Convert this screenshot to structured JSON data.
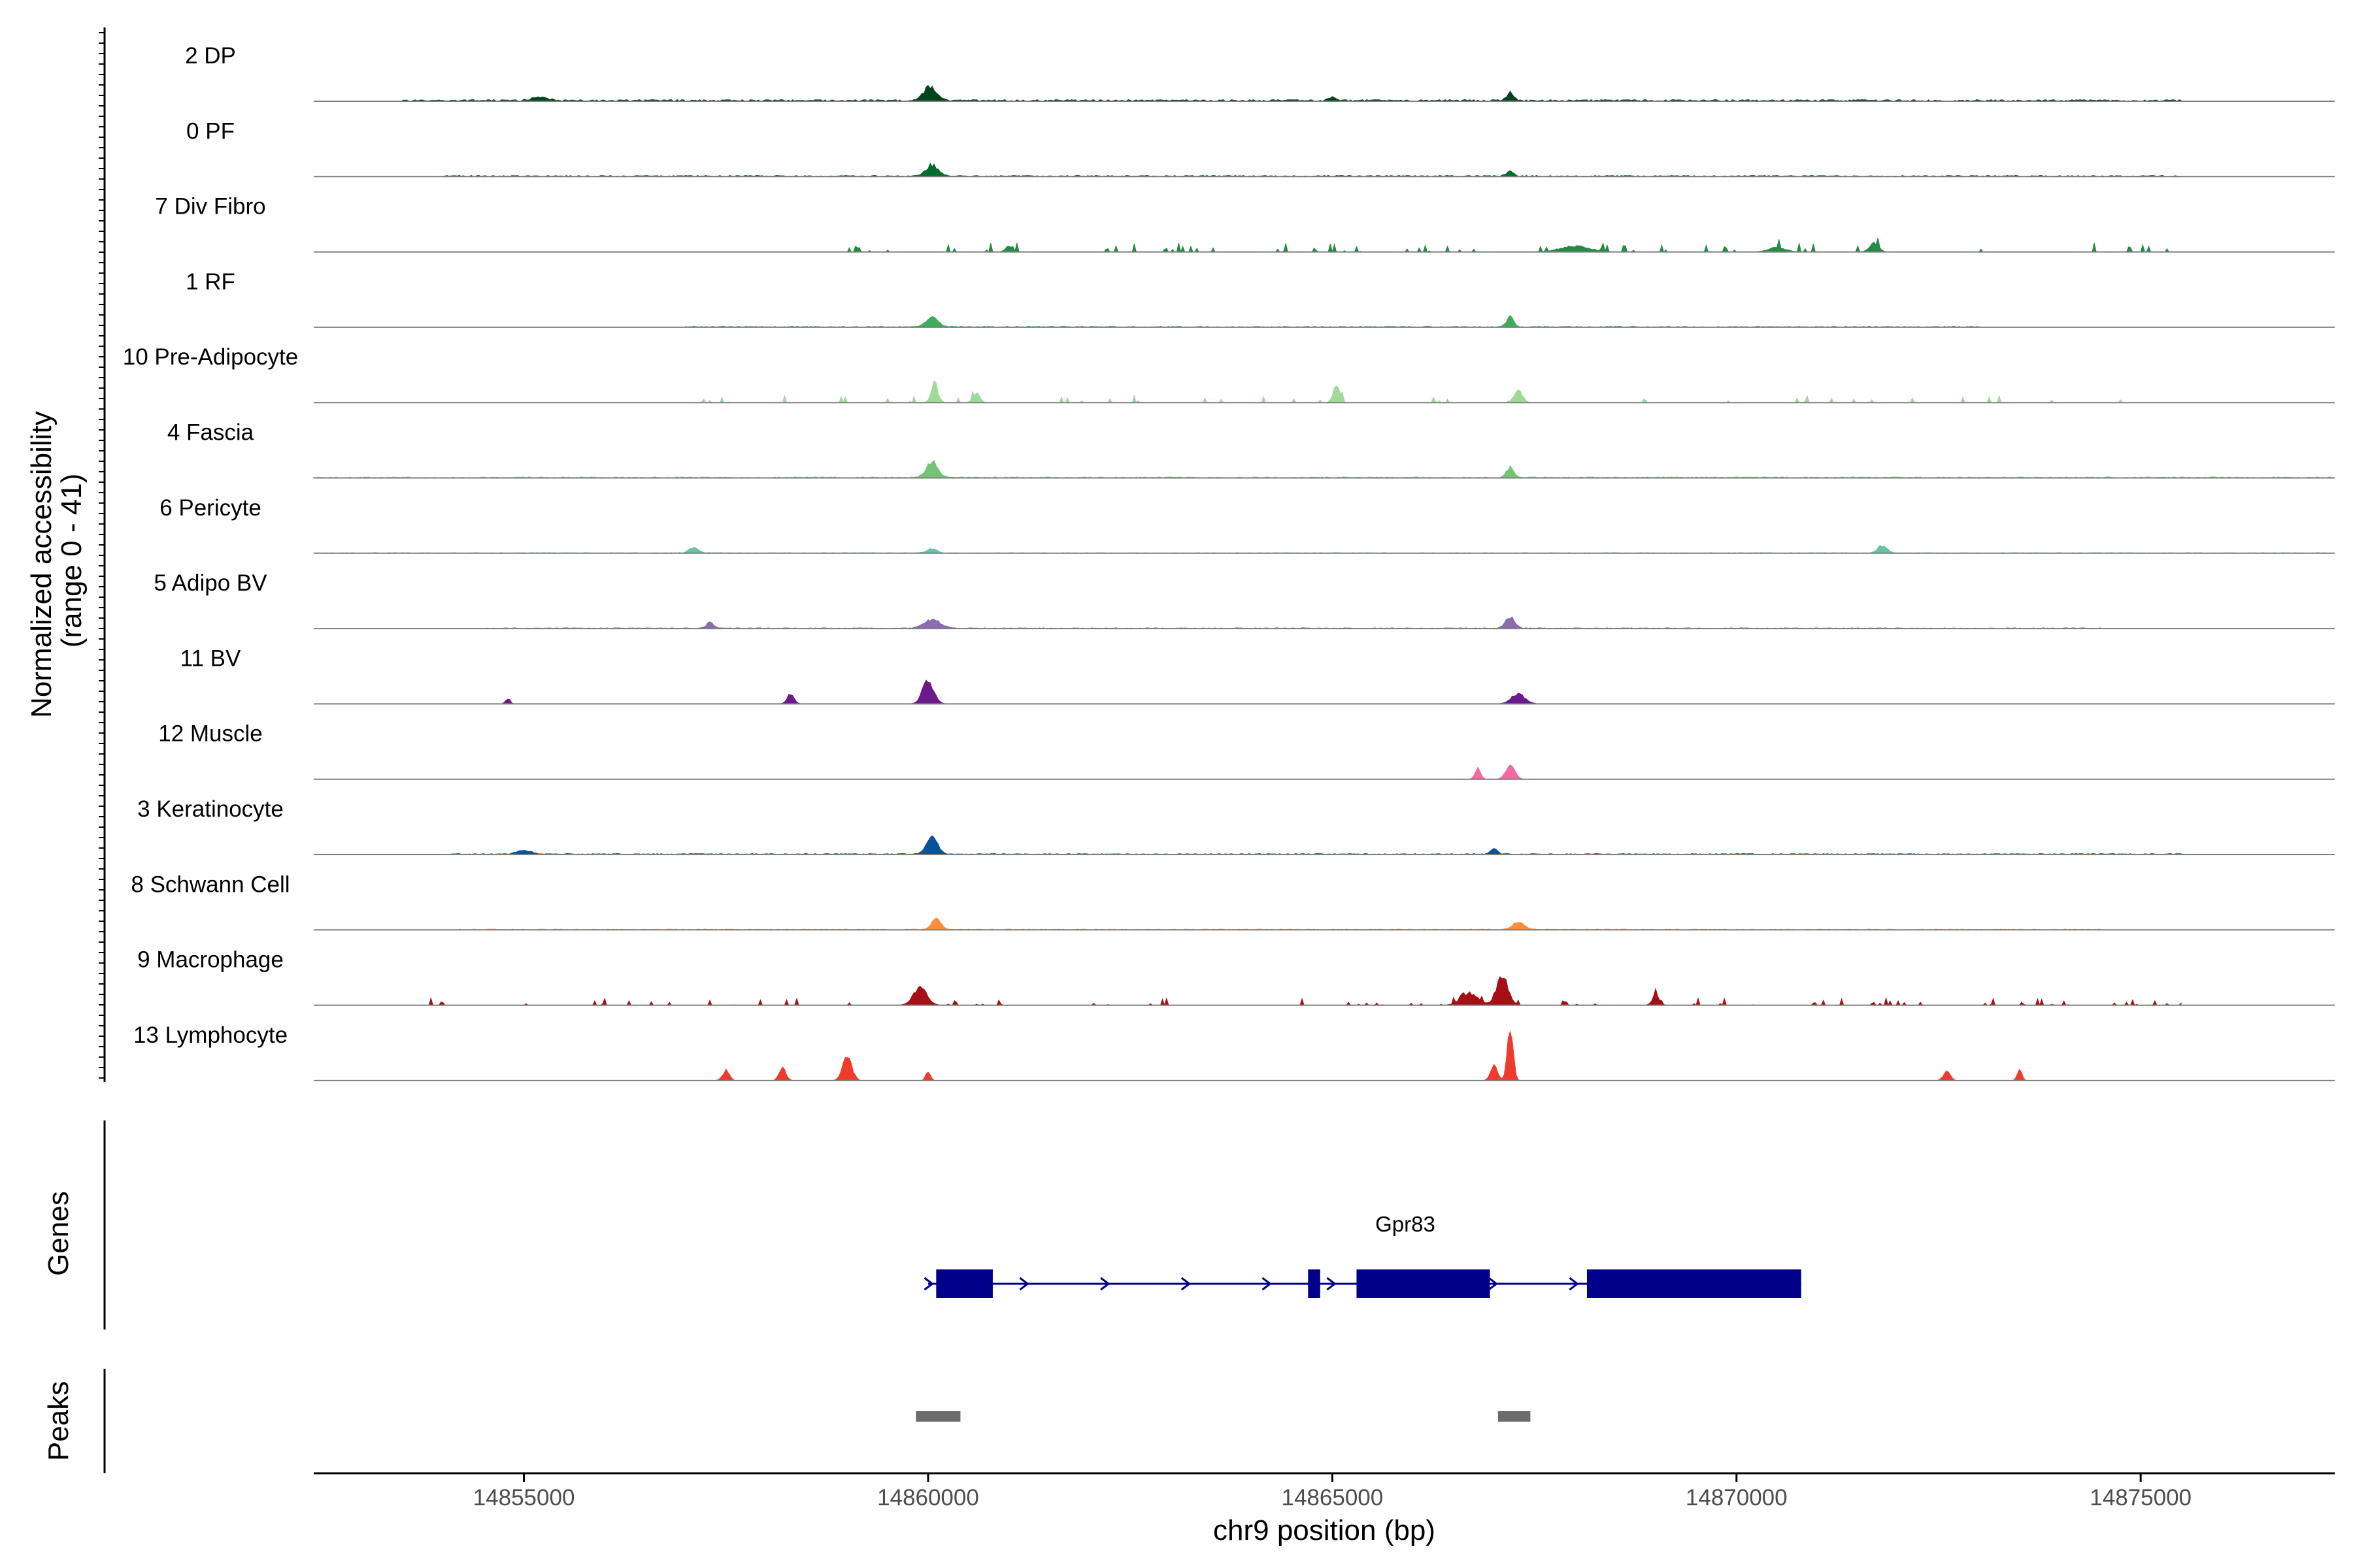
{
  "chart_data": {
    "type": "area",
    "title": "",
    "ylabel_line1": "Normalized accessibility",
    "ylabel_line2": "(range 0 - 41)",
    "y_range": [
      0,
      41
    ],
    "xlabel": "chr9 position (bp)",
    "xlim": [
      14852400,
      14877400
    ],
    "x_ticks": [
      14855000,
      14860000,
      14865000,
      14870000,
      14875000
    ],
    "x_tick_labels": [
      "14855000",
      "14860000",
      "14865000",
      "14870000",
      "14875000"
    ],
    "genes_panel_label": "Genes",
    "peaks_panel_label": "Peaks",
    "tracks": [
      {
        "name": "2 DP",
        "color": "#00441b",
        "noise": 0.4,
        "range": [
          14853500,
          14875500
        ],
        "peaks": [
          [
            14860020,
            120,
            0.45
          ],
          [
            14867200,
            60,
            0.25
          ],
          [
            14855200,
            150,
            0.1
          ],
          [
            14865000,
            60,
            0.1
          ]
        ]
      },
      {
        "name": "0 PF",
        "color": "#006d2c",
        "noise": 0.3,
        "range": [
          14854000,
          14875500
        ],
        "peaks": [
          [
            14860050,
            100,
            0.4
          ],
          [
            14867200,
            60,
            0.2
          ]
        ]
      },
      {
        "name": "7 Div Fibro",
        "color": "#238b45",
        "noise": 0.45,
        "range": [
          14859000,
          14875500
        ],
        "sparse": true,
        "peaks": [
          [
            14861000,
            60,
            0.2
          ],
          [
            14868000,
            250,
            0.2
          ],
          [
            14871700,
            80,
            0.3
          ],
          [
            14870500,
            150,
            0.15
          ]
        ]
      },
      {
        "name": "1 RF",
        "color": "#41ab5d",
        "noise": 0.25,
        "range": [
          14857000,
          14873000
        ],
        "peaks": [
          [
            14860050,
            100,
            0.35
          ],
          [
            14867200,
            60,
            0.35
          ]
        ]
      },
      {
        "name": "10 Pre-Adipocyte",
        "color": "#a1d99b",
        "noise": 0.35,
        "range": [
          14857200,
          14875000
        ],
        "sparse": true,
        "peaks": [
          [
            14860080,
            60,
            0.65
          ],
          [
            14865050,
            60,
            0.55
          ],
          [
            14867300,
            70,
            0.45
          ],
          [
            14860600,
            60,
            0.3
          ]
        ]
      },
      {
        "name": "4 Fascia",
        "color": "#74c476",
        "noise": 0.25,
        "range": [
          14852400,
          14877400
        ],
        "peaks": [
          [
            14860050,
            100,
            0.55
          ],
          [
            14867200,
            60,
            0.35
          ]
        ]
      },
      {
        "name": "6 Pericyte",
        "color": "#66c2a4",
        "noise": 0.15,
        "range": [
          14852400,
          14877400
        ],
        "peaks": [
          [
            14857100,
            80,
            0.2
          ],
          [
            14871800,
            80,
            0.25
          ],
          [
            14860050,
            80,
            0.15
          ]
        ]
      },
      {
        "name": "5 Adipo BV",
        "color": "#8c6bb1",
        "noise": 0.2,
        "range": [
          14854500,
          14874500
        ],
        "peaks": [
          [
            14860050,
            140,
            0.3
          ],
          [
            14867200,
            80,
            0.4
          ],
          [
            14857300,
            60,
            0.2
          ]
        ]
      },
      {
        "name": "11 BV",
        "color": "#6a1a8a",
        "noise": 0.0,
        "range": [
          14854700,
          14868800
        ],
        "sparse": true,
        "peaks": [
          [
            14860000,
            100,
            0.75
          ],
          [
            14858300,
            60,
            0.35
          ],
          [
            14867300,
            120,
            0.35
          ],
          [
            14854800,
            40,
            0.2
          ]
        ]
      },
      {
        "name": "12 Muscle",
        "color": "#f768a1",
        "noise": 0.0,
        "range": [
          14859500,
          14875600
        ],
        "sparse": true,
        "peaks": [
          [
            14867200,
            80,
            0.5
          ],
          [
            14866800,
            50,
            0.35
          ]
        ]
      },
      {
        "name": "3 Keratinocyte",
        "color": "#08519c",
        "noise": 0.25,
        "range": [
          14854000,
          14875500
        ],
        "peaks": [
          [
            14860050,
            100,
            0.55
          ],
          [
            14867000,
            60,
            0.2
          ],
          [
            14855000,
            120,
            0.12
          ]
        ]
      },
      {
        "name": "8 Schwann Cell",
        "color": "#fd8d3c",
        "noise": 0.2,
        "range": [
          14854200,
          14874500
        ],
        "peaks": [
          [
            14860100,
            80,
            0.35
          ],
          [
            14867300,
            100,
            0.25
          ]
        ]
      },
      {
        "name": "9 Macrophage",
        "color": "#a50f15",
        "noise": 0.35,
        "range": [
          14853800,
          14875500
        ],
        "sparse": true,
        "peaks": [
          [
            14867100,
            100,
            1.0
          ],
          [
            14866700,
            150,
            0.4
          ],
          [
            14859900,
            120,
            0.6
          ],
          [
            14869000,
            60,
            0.35
          ]
        ]
      },
      {
        "name": "13 Lymphocyte",
        "color": "#ef3b2c",
        "noise": 0.0,
        "range": [
          14857200,
          14873600
        ],
        "sparse": true,
        "peaks": [
          [
            14867200,
            50,
            1.8
          ],
          [
            14867000,
            60,
            0.5
          ],
          [
            14859000,
            80,
            0.8
          ],
          [
            14858200,
            60,
            0.4
          ],
          [
            14857500,
            60,
            0.35
          ],
          [
            14860000,
            40,
            0.3
          ],
          [
            14872600,
            60,
            0.3
          ],
          [
            14873500,
            40,
            0.4
          ]
        ]
      }
    ],
    "gene": {
      "name": "Gpr83",
      "color": "#00008b",
      "strand": "+",
      "start": 14860000,
      "end": 14870800,
      "exons": [
        [
          14860100,
          14860800
        ],
        [
          14864700,
          14864850
        ],
        [
          14865300,
          14866950
        ],
        [
          14868150,
          14870800
        ]
      ]
    },
    "peaks_track": {
      "color": "#6b6b6b",
      "regions": [
        [
          14859850,
          14860400
        ],
        [
          14867050,
          14867450
        ]
      ]
    }
  }
}
